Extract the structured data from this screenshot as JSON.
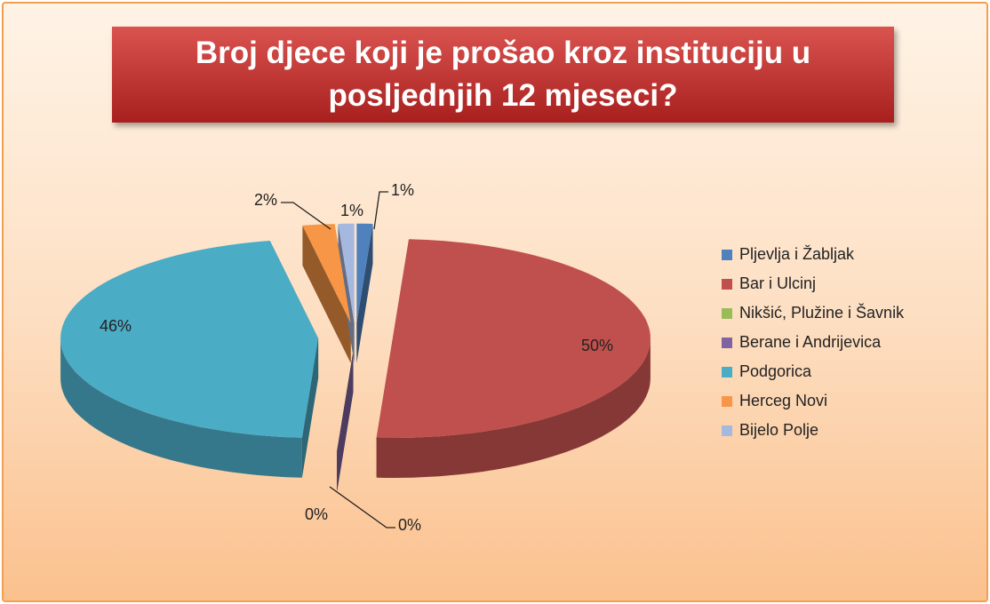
{
  "chart_data": {
    "type": "pie3d",
    "title": "Broj djece koji je prošao kroz instituciju u posljednjih 12 mjeseci?",
    "categories": [
      "Pljevlja i Žabljak",
      "Bar i Ulcinj",
      "Nikšić, Plužine i Šavnik",
      "Berane i Andrijevica",
      "Podgorica",
      "Herceg Novi",
      "Bijelo Polje"
    ],
    "values": [
      1,
      50,
      0,
      0,
      46,
      2,
      1
    ],
    "value_labels": [
      "1%",
      "50%",
      "0%",
      "0%",
      "46%",
      "2%",
      "1%"
    ],
    "colors": [
      "#4f81bd",
      "#c0504d",
      "#9bbb59",
      "#8064a2",
      "#4bacc6",
      "#f79646",
      "#a5b8e0"
    ],
    "legend": "right"
  }
}
